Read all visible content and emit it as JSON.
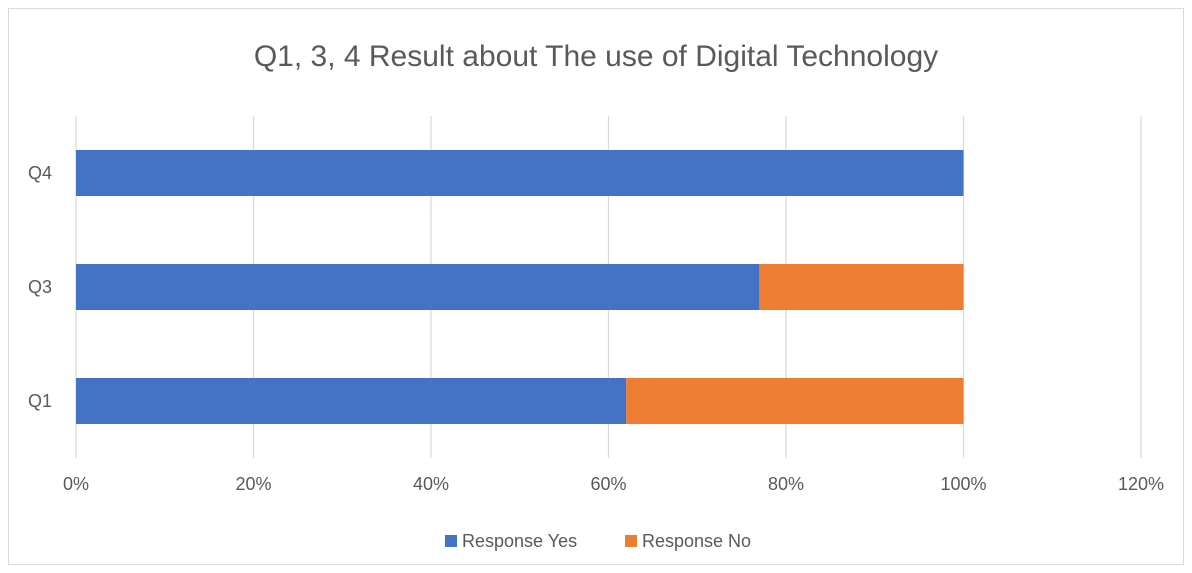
{
  "chart_data": {
    "type": "bar",
    "orientation": "horizontal",
    "stacked": true,
    "title": "Q1, 3, 4 Result about The use of Digital Technology",
    "categories": [
      "Q1",
      "Q3",
      "Q4"
    ],
    "series": [
      {
        "name": "Response Yes",
        "color": "#4472c4",
        "values": [
          62,
          77,
          100
        ]
      },
      {
        "name": "Response No",
        "color": "#ed7d31",
        "values": [
          38,
          23,
          0
        ]
      }
    ],
    "xlim": [
      0,
      120
    ],
    "x_ticks": [
      "0%",
      "20%",
      "40%",
      "60%",
      "80%",
      "100%",
      "120%"
    ],
    "x_tick_values": [
      0,
      20,
      40,
      60,
      80,
      100,
      120
    ],
    "grid": true,
    "legend_position": "bottom"
  }
}
